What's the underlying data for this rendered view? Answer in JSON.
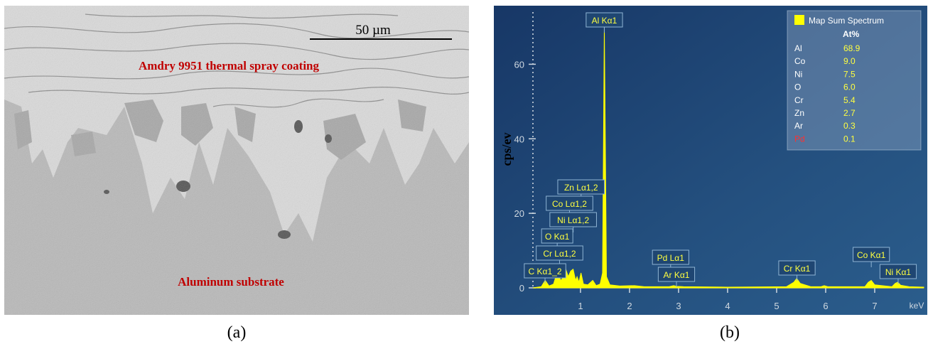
{
  "panel_a": {
    "scale_bar": "50 µm",
    "coating_label": "Amdry 9951 thermal spray coating",
    "substrate_label": "Aluminum substrate",
    "caption": "(a)"
  },
  "chart_data": {
    "type": "area",
    "caption": "(b)",
    "y_label": "cps/ev",
    "x_unit": "keV",
    "color": "#ffff00",
    "x": [
      0.03,
      0.2,
      0.28,
      0.36,
      0.45,
      0.52,
      0.6,
      0.66,
      0.7,
      0.75,
      0.8,
      0.85,
      0.9,
      0.93,
      0.97,
      1.01,
      1.06,
      1.15,
      1.25,
      1.32,
      1.4,
      1.45,
      1.486,
      1.53,
      1.6,
      1.8,
      2.1,
      2.3,
      2.8,
      2.9,
      2.96,
      3.1,
      4,
      5.2,
      5.35,
      5.41,
      5.48,
      5.7,
      5.9,
      5.97,
      6.05,
      6.8,
      6.87,
      6.93,
      7.0,
      7.35,
      7.42,
      7.47,
      7.53,
      7.7,
      8.0
    ],
    "values": [
      0,
      0.3,
      2,
      0.5,
      1,
      4,
      2,
      3,
      5,
      3,
      4.5,
      5,
      2,
      3,
      1.5,
      4,
      1,
      0.8,
      2,
      0.6,
      1,
      4,
      70,
      3,
      0.8,
      0.5,
      0.6,
      0.3,
      0.3,
      0.6,
      0.4,
      0.3,
      0.2,
      0.3,
      1.5,
      2.5,
      1.2,
      0.3,
      0.3,
      0.6,
      0.3,
      0.3,
      1.5,
      2,
      0.8,
      0.3,
      1.2,
      1.5,
      0.7,
      0.3,
      0.2
    ],
    "xlim": [
      0.03,
      8.0
    ],
    "ylim": [
      0,
      74
    ],
    "xticks": [
      1,
      2,
      3,
      4,
      5,
      6,
      7
    ],
    "yticks": [
      0,
      20,
      40,
      60
    ],
    "annotations": [
      {
        "text": "Al Kα1",
        "x": 1.486
      },
      {
        "text": "Zn Lα1,2",
        "x": 1.012
      },
      {
        "text": "Co Lα1,2",
        "x": 0.776
      },
      {
        "text": "Ni Lα1,2",
        "x": 0.851
      },
      {
        "text": "O Kα1",
        "x": 0.525
      },
      {
        "text": "Cr Lα1,2",
        "x": 0.573
      },
      {
        "text": "C Kα1_2",
        "x": 0.277
      },
      {
        "text": "Pd Lα1",
        "x": 2.838
      },
      {
        "text": "Ar Kα1",
        "x": 2.957
      },
      {
        "text": "Cr Kα1",
        "x": 5.414
      },
      {
        "text": "Co Kα1",
        "x": 6.93
      },
      {
        "text": "Ni Kα1",
        "x": 7.478
      }
    ],
    "legend": {
      "title": "Map Sum Spectrum",
      "header": "At%",
      "rows": [
        {
          "element": "Al",
          "value": "68.9"
        },
        {
          "element": "Co",
          "value": "9.0"
        },
        {
          "element": "Ni",
          "value": "7.5"
        },
        {
          "element": "O",
          "value": "6.0"
        },
        {
          "element": "Cr",
          "value": "5.4"
        },
        {
          "element": "Zn",
          "value": "2.7"
        },
        {
          "element": "Ar",
          "value": "0.3"
        },
        {
          "element": "Pd",
          "value": "0.1",
          "color": "#ff3030"
        }
      ]
    }
  }
}
